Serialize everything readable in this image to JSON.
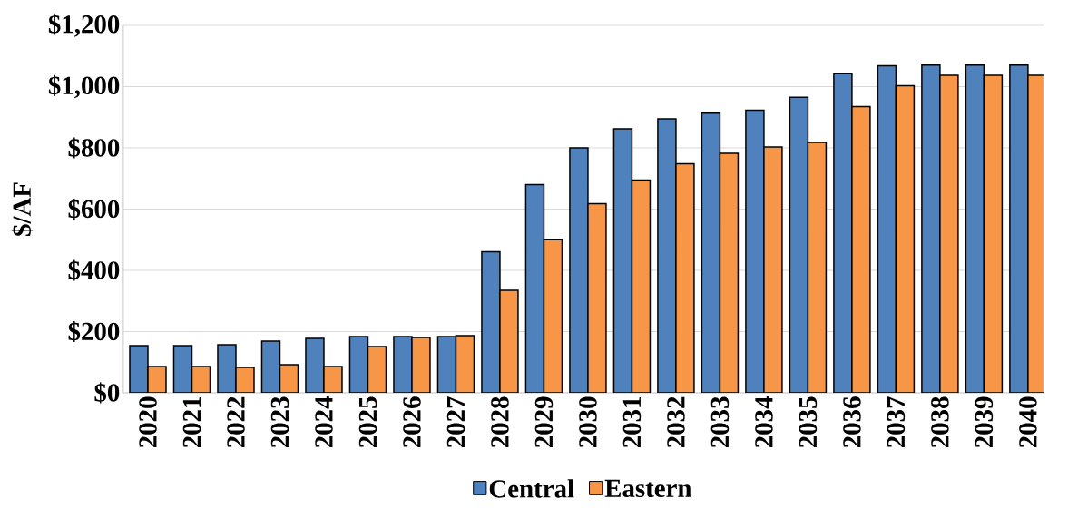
{
  "chart_data": {
    "type": "bar",
    "ylabel": "$/AF",
    "categories": [
      "2020",
      "2021",
      "2022",
      "2023",
      "2024",
      "2025",
      "2026",
      "2027",
      "2028",
      "2029",
      "2030",
      "2031",
      "2032",
      "2033",
      "2034",
      "2035",
      "2036",
      "2037",
      "2038",
      "2039",
      "2040"
    ],
    "series": [
      {
        "name": "Central",
        "color": "#4f81bd",
        "values": [
          154,
          154,
          157,
          169,
          178,
          184,
          184,
          184,
          461,
          680,
          800,
          862,
          895,
          913,
          923,
          965,
          1042,
          1068,
          1070,
          1070,
          1070
        ]
      },
      {
        "name": "Eastern",
        "color": "#f79646",
        "values": [
          86,
          86,
          83,
          92,
          86,
          151,
          181,
          187,
          335,
          500,
          618,
          695,
          748,
          782,
          803,
          818,
          935,
          1003,
          1037,
          1037,
          1037
        ]
      }
    ],
    "ylim": [
      0,
      1200
    ],
    "yticks": [
      {
        "value": 0,
        "label": "$0"
      },
      {
        "value": 200,
        "label": "$200"
      },
      {
        "value": 400,
        "label": "$400"
      },
      {
        "value": 600,
        "label": "$600"
      },
      {
        "value": 800,
        "label": "$800"
      },
      {
        "value": 1000,
        "label": "$1,000"
      },
      {
        "value": 1200,
        "label": "$1,200"
      }
    ],
    "grid": "y",
    "legend": "bottom"
  }
}
